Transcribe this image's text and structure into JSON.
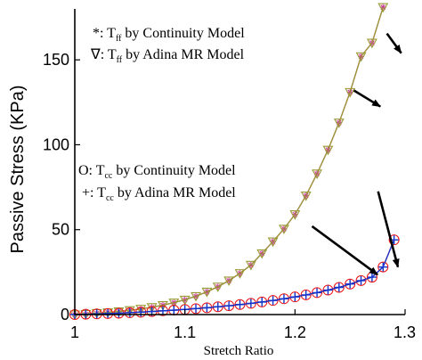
{
  "chart_data": {
    "type": "line",
    "xlabel": "Stretch Ratio",
    "ylabel": "Passive Stress (KPa)",
    "xlim": [
      1.0,
      1.3
    ],
    "ylim": [
      0,
      180
    ],
    "xticks": [
      1,
      1.1,
      1.2,
      1.3
    ],
    "xtick_labels": [
      "1",
      "1.1",
      "1.2",
      "1.3"
    ],
    "yticks": [
      0,
      50,
      100,
      150
    ],
    "ytick_labels": [
      "0",
      "50",
      "100",
      "150"
    ],
    "grid": false,
    "series": [
      {
        "legend_symbol": "*",
        "legend_text": "T",
        "legend_sub": "ff",
        "legend_suffix": " by Continuity Model",
        "color": "#cc3399",
        "marker": "asterisk",
        "x": [
          1.0,
          1.01,
          1.02,
          1.03,
          1.04,
          1.05,
          1.06,
          1.07,
          1.08,
          1.09,
          1.1,
          1.11,
          1.12,
          1.13,
          1.14,
          1.15,
          1.16,
          1.17,
          1.18,
          1.19,
          1.2,
          1.21,
          1.22,
          1.23,
          1.24,
          1.25,
          1.26,
          1.27,
          1.28
        ],
        "y": [
          0,
          0.3,
          0.8,
          1.2,
          1.8,
          2.5,
          3.3,
          4.3,
          5.5,
          7.0,
          8.7,
          10.8,
          13.4,
          16.4,
          20.0,
          24.3,
          29.2,
          36.0,
          43.0,
          50.5,
          59.0,
          70.0,
          83.0,
          97.0,
          113.0,
          131.0,
          152.0,
          160.0,
          181.0
        ]
      },
      {
        "legend_symbol": "∇",
        "legend_text": "T",
        "legend_sub": "ff",
        "legend_suffix": " by Adina MR Model",
        "color": "#999933",
        "marker": "triangle-down",
        "x": [
          1.0,
          1.01,
          1.02,
          1.03,
          1.04,
          1.05,
          1.06,
          1.07,
          1.08,
          1.09,
          1.1,
          1.11,
          1.12,
          1.13,
          1.14,
          1.15,
          1.16,
          1.17,
          1.18,
          1.19,
          1.2,
          1.21,
          1.22,
          1.23,
          1.24,
          1.25,
          1.26,
          1.27,
          1.28
        ],
        "y": [
          0,
          0.3,
          0.8,
          1.2,
          1.8,
          2.5,
          3.3,
          4.3,
          5.5,
          7.0,
          8.7,
          10.8,
          13.4,
          16.4,
          20.0,
          24.3,
          29.2,
          36.0,
          43.0,
          50.5,
          59.0,
          70.0,
          83.0,
          97.0,
          113.0,
          131.0,
          152.0,
          160.0,
          181.0
        ]
      },
      {
        "legend_symbol": "O",
        "legend_text": "T",
        "legend_sub": "cc",
        "legend_suffix": " by Continuity Model",
        "color": "#ee1111",
        "marker": "circle",
        "x": [
          1.0,
          1.01,
          1.02,
          1.03,
          1.04,
          1.05,
          1.06,
          1.07,
          1.08,
          1.09,
          1.1,
          1.11,
          1.12,
          1.13,
          1.14,
          1.15,
          1.16,
          1.17,
          1.18,
          1.19,
          1.2,
          1.21,
          1.22,
          1.23,
          1.24,
          1.25,
          1.26,
          1.27,
          1.28,
          1.29
        ],
        "y": [
          0,
          0.2,
          0.4,
          0.6,
          0.8,
          1.1,
          1.4,
          1.8,
          2.2,
          2.6,
          3.0,
          3.5,
          4.0,
          4.6,
          5.2,
          5.9,
          6.6,
          7.4,
          8.3,
          9.3,
          10.4,
          11.6,
          12.9,
          14.4,
          16.0,
          18.0,
          20.0,
          22.0,
          28.0,
          44.0
        ]
      },
      {
        "legend_symbol": "+",
        "legend_text": "T",
        "legend_sub": "cc",
        "legend_suffix": " by Adina MR Model",
        "color": "#1133cc",
        "marker": "plus",
        "x": [
          1.0,
          1.01,
          1.02,
          1.03,
          1.04,
          1.05,
          1.06,
          1.07,
          1.08,
          1.09,
          1.1,
          1.11,
          1.12,
          1.13,
          1.14,
          1.15,
          1.16,
          1.17,
          1.18,
          1.19,
          1.2,
          1.21,
          1.22,
          1.23,
          1.24,
          1.25,
          1.26,
          1.27,
          1.28,
          1.29
        ],
        "y": [
          0,
          0.2,
          0.4,
          0.6,
          0.8,
          1.1,
          1.4,
          1.8,
          2.2,
          2.6,
          3.0,
          3.5,
          4.0,
          4.6,
          5.2,
          5.9,
          6.6,
          7.4,
          8.3,
          9.3,
          10.4,
          11.6,
          12.9,
          14.4,
          16.0,
          18.0,
          20.0,
          22.0,
          28.0,
          44.0
        ]
      }
    ],
    "annotations": [
      {
        "type": "arrow",
        "from": [
          1.2835,
          165.5
        ],
        "to": [
          1.2965,
          154.0
        ]
      },
      {
        "type": "arrow",
        "from": [
          1.2535,
          132.0
        ],
        "to": [
          1.2775,
          122.5
        ]
      },
      {
        "type": "arrow",
        "from": [
          1.2755,
          72.5
        ],
        "to": [
          1.2935,
          28.0
        ]
      },
      {
        "type": "arrow",
        "from": [
          1.2155,
          52.0
        ],
        "to": [
          1.275,
          23.5
        ]
      }
    ]
  }
}
